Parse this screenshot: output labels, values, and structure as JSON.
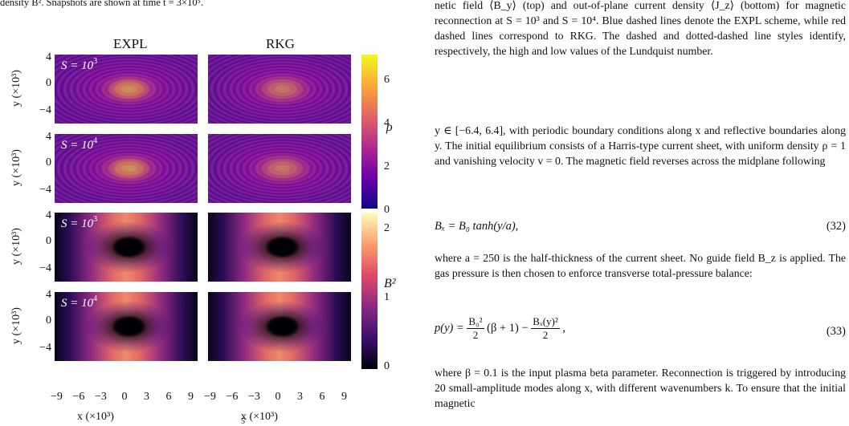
{
  "left_caption_fragment": "density B². Snapshots are shown at time t = 3×10⁵.",
  "columns": [
    "EXPL",
    "RKG"
  ],
  "rows": [
    {
      "label_main": "S = 10",
      "label_exp": "3",
      "field": "rho"
    },
    {
      "label_main": "S = 10",
      "label_exp": "4",
      "field": "rho"
    },
    {
      "label_main": "S = 10",
      "label_exp": "3",
      "field": "B2"
    },
    {
      "label_main": "S = 10",
      "label_exp": "4",
      "field": "B2"
    }
  ],
  "y_ticks": [
    "4",
    "0",
    "−4"
  ],
  "y_label": "y (×10³)",
  "x_ticks": [
    "−9",
    "−6",
    "−3",
    "0",
    "3",
    "6",
    "9"
  ],
  "x_label": "x (×10³)",
  "colorbar_rho": {
    "label": "ρ",
    "ticks": [
      "6",
      "4",
      "2",
      "0"
    ],
    "colors": [
      "#0d0887",
      "#6a00a8",
      "#b12a90",
      "#e16462",
      "#fca636",
      "#f0f921"
    ]
  },
  "colorbar_b2": {
    "label": "B²",
    "ticks": [
      "2",
      "1",
      "0"
    ],
    "colors": [
      "#000004",
      "#3b0f70",
      "#8c2981",
      "#de4968",
      "#fe9f6d",
      "#fcfdbf"
    ]
  },
  "right_caption": "netic field ⟨B_y⟩ (top) and out-of-plane current density ⟨J_z⟩ (bottom) for magnetic reconnection at S = 10³ and S = 10⁴. Blue dashed lines denote the EXPL scheme, while red dashed lines correspond to RKG. The dashed and dotted-dashed line styles identify, respectively, the high and low values of the Lundquist number.",
  "para1": "y ∈ [−6.4, 6.4], with periodic boundary conditions along x and reflective boundaries along y. The initial equilibrium consists of a Harris-type current sheet, with uniform density ρ = 1 and vanishing velocity v = 0. The magnetic field reverses across the midplane following",
  "eq1": "Bₓ = B₀ tanh(y/a),",
  "eq1_num": "(32)",
  "para2": "where a = 250 is the half-thickness of the current sheet. No guide field B_z is applied. The gas pressure is then chosen to enforce transverse total-pressure balance:",
  "eq2_lhs": "p(y) =",
  "eq2_f1n": "B₀²",
  "eq2_f1d": "2",
  "eq2_mid": "(β + 1) −",
  "eq2_f2n": "Bₓ(y)²",
  "eq2_f2d": "2",
  "eq2_end": ",",
  "eq2_num": "(33)",
  "para3": "where β = 0.1 is the input plasma beta parameter. Reconnection is triggered by introducing 20 small-amplitude modes along x, with different wavenumbers k. To ensure that the initial magnetic",
  "bottom_fragment": "5"
}
